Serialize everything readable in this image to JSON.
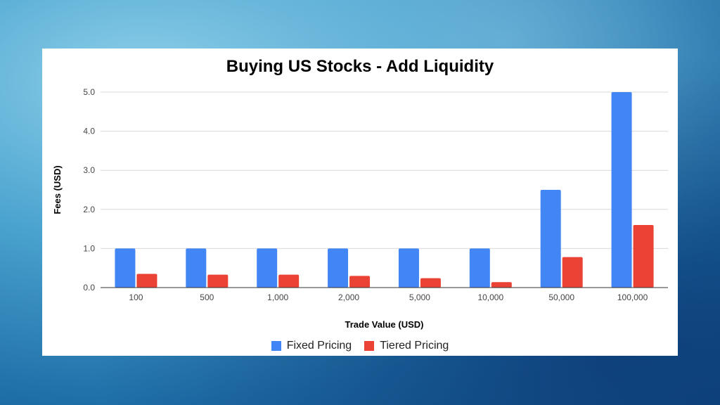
{
  "chart_data": {
    "type": "bar",
    "title": "Buying US Stocks - Add Liquidity",
    "xlabel": "Trade Value (USD)",
    "ylabel": "Fees (USD)",
    "categories": [
      "100",
      "500",
      "1,000",
      "2,000",
      "5,000",
      "10,000",
      "50,000",
      "100,000"
    ],
    "ylim": [
      0,
      5
    ],
    "yticks": [
      "0.0",
      "1.0",
      "2.0",
      "3.0",
      "4.0",
      "5.0"
    ],
    "grid": true,
    "legend": "bottom",
    "series": [
      {
        "name": "Fixed Pricing",
        "color": "#4285f4",
        "values": [
          1,
          1,
          1,
          1,
          1,
          1,
          2.5,
          5
        ]
      },
      {
        "name": "Tiered Pricing",
        "color": "#ea4335",
        "values": [
          0.35,
          0.33,
          0.33,
          0.3,
          0.24,
          0.14,
          0.78,
          1.6
        ]
      }
    ]
  }
}
